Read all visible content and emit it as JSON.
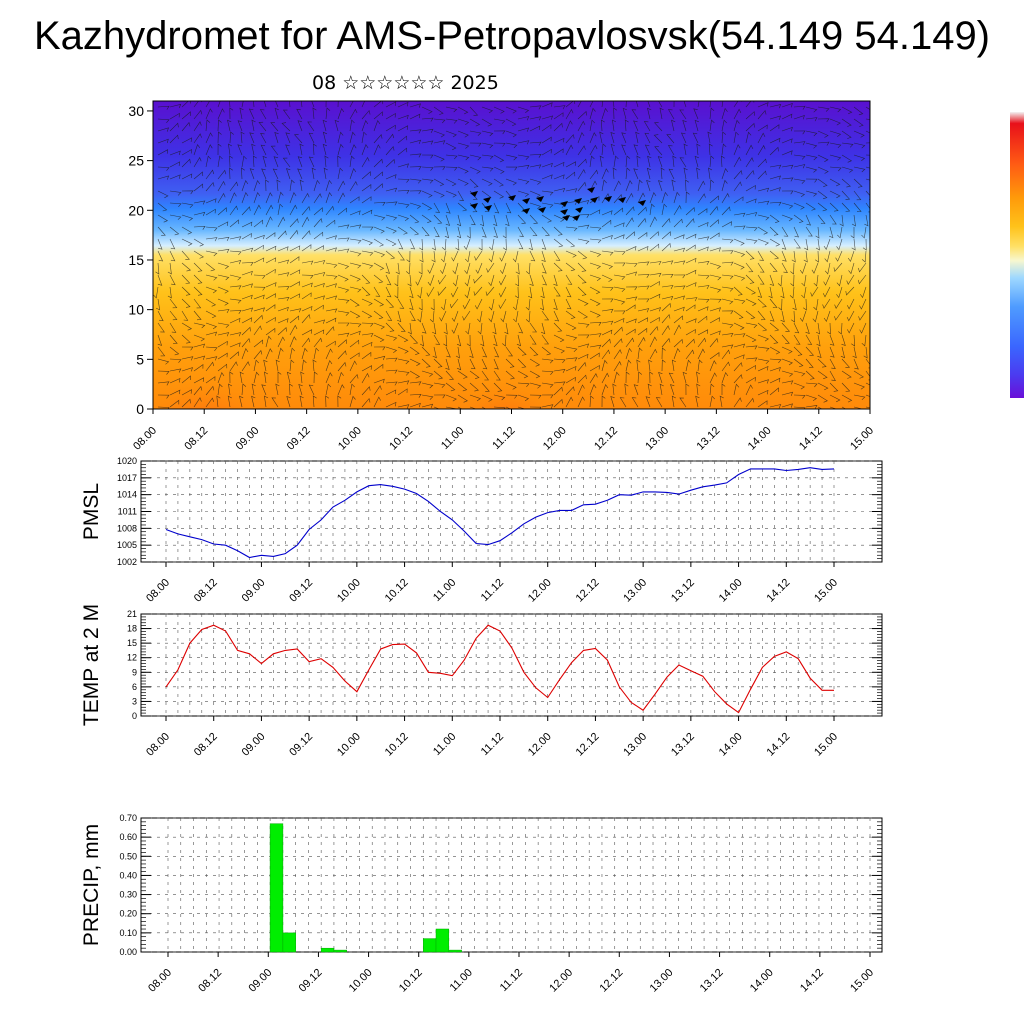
{
  "title": "Kazhydromet for AMS-Petropavlosvsk(54.149 54.149)",
  "subtitle": "08 ☆☆☆☆☆☆ 2025",
  "time_labels": [
    "08.00",
    "08.12",
    "09.00",
    "09.12",
    "10.00",
    "10.12",
    "11.00",
    "11.12",
    "12.00",
    "12.12",
    "13.00",
    "13.12",
    "14.00",
    "14.12",
    "15.00"
  ],
  "colors": {
    "pmsl_line": "#0000cc",
    "temp_line": "#dd0000",
    "precip_bar": "#00ee00",
    "colorbar": [
      "#6a0fd8",
      "#4b3bf0",
      "#3a66ff",
      "#4f9cff",
      "#9ed8ff",
      "#f7f7d0",
      "#ffe066",
      "#ffc21a",
      "#ff9a0a",
      "#ff5a14",
      "#e8101a",
      "#f2f2f2"
    ]
  },
  "chart_data": [
    {
      "type": "heatmap",
      "name_hint": "wind-temperature-cross-section",
      "title": "",
      "x_labels": [
        "08.00",
        "08.12",
        "09.00",
        "09.12",
        "10.00",
        "10.12",
        "11.00",
        "11.12",
        "12.00",
        "12.12",
        "13.00",
        "13.12",
        "14.00",
        "14.12",
        "15.00"
      ],
      "y_ticks": [
        0,
        5,
        10,
        15,
        20,
        25,
        30
      ],
      "ylim": [
        0,
        31
      ],
      "xlabel": "",
      "ylabel": "",
      "overlay": "wind barbs",
      "colorbar": "right"
    },
    {
      "type": "line",
      "ylabel": "PMSL",
      "x_labels": [
        "08.00",
        "08.12",
        "09.00",
        "09.12",
        "10.00",
        "10.12",
        "11.00",
        "11.12",
        "12.00",
        "12.12",
        "13.00",
        "13.12",
        "14.00",
        "14.12",
        "15.00"
      ],
      "y_ticks": [
        1002,
        1005,
        1008,
        1011,
        1014,
        1017,
        1020
      ],
      "ylim": [
        1002,
        1020
      ],
      "grid": true,
      "x_step_hours": 3,
      "values": [
        1007.8,
        1007.0,
        1006.5,
        1006.0,
        1005.2,
        1005.0,
        1004.0,
        1002.8,
        1003.2,
        1003.0,
        1003.5,
        1005.0,
        1007.8,
        1009.5,
        1011.8,
        1013.0,
        1014.5,
        1015.6,
        1015.8,
        1015.5,
        1015.0,
        1014.2,
        1012.8,
        1011.0,
        1009.5,
        1007.5,
        1005.3,
        1005.1,
        1005.8,
        1007.2,
        1008.8,
        1010.0,
        1010.8,
        1011.2,
        1011.2,
        1012.2,
        1012.3,
        1013.0,
        1014.0,
        1013.9,
        1014.5,
        1014.5,
        1014.4,
        1014.1,
        1014.8,
        1015.4,
        1015.7,
        1016.1,
        1017.6,
        1018.6,
        1018.6,
        1018.6,
        1018.3,
        1018.5,
        1018.8,
        1018.5,
        1018.6
      ]
    },
    {
      "type": "line",
      "ylabel": "TEMP at 2 M",
      "x_labels": [
        "08.00",
        "08.12",
        "09.00",
        "09.12",
        "10.00",
        "10.12",
        "11.00",
        "11.12",
        "12.00",
        "12.12",
        "13.00",
        "13.12",
        "14.00",
        "14.12",
        "15.00"
      ],
      "y_ticks": [
        0,
        3,
        6,
        9,
        12,
        15,
        18,
        21
      ],
      "ylim": [
        0,
        21
      ],
      "grid": true,
      "x_step_hours": 3,
      "values": [
        6.0,
        9.5,
        15.0,
        17.8,
        18.7,
        17.5,
        13.5,
        12.8,
        10.8,
        12.8,
        13.5,
        13.8,
        11.2,
        11.8,
        10.0,
        7.2,
        5.0,
        9.5,
        13.8,
        14.7,
        14.8,
        13.0,
        9.0,
        8.8,
        8.3,
        11.5,
        16.0,
        18.7,
        17.5,
        14.0,
        9.0,
        5.8,
        3.8,
        7.5,
        11.0,
        13.5,
        13.9,
        11.5,
        6.0,
        2.8,
        1.2,
        4.5,
        8.0,
        10.5,
        9.3,
        8.2,
        5.0,
        2.5,
        0.7,
        5.5,
        10.0,
        12.3,
        13.2,
        11.8,
        7.8,
        5.3,
        5.3
      ]
    },
    {
      "type": "bar",
      "ylabel": "PRECIP, mm",
      "x_labels": [
        "08.00",
        "08.12",
        "09.00",
        "09.12",
        "10.00",
        "10.12",
        "11.00",
        "11.12",
        "12.00",
        "12.12",
        "13.00",
        "13.12",
        "14.00",
        "14.12",
        "15.00"
      ],
      "y_ticks": [
        "0.00",
        "0.10",
        "0.20",
        "0.30",
        "0.40",
        "0.50",
        "0.60",
        "0.70"
      ],
      "ylim": [
        0,
        0.7
      ],
      "grid": true,
      "x_step_hours": 3,
      "values": [
        0,
        0,
        0,
        0,
        0,
        0,
        0,
        0,
        0,
        0.67,
        0.1,
        0,
        0,
        0.02,
        0.01,
        0,
        0,
        0,
        0,
        0,
        0,
        0.07,
        0.12,
        0.01,
        0,
        0,
        0,
        0,
        0,
        0,
        0,
        0,
        0,
        0,
        0,
        0,
        0,
        0,
        0,
        0,
        0,
        0,
        0,
        0,
        0,
        0,
        0,
        0,
        0,
        0,
        0,
        0,
        0,
        0,
        0,
        0
      ]
    }
  ]
}
